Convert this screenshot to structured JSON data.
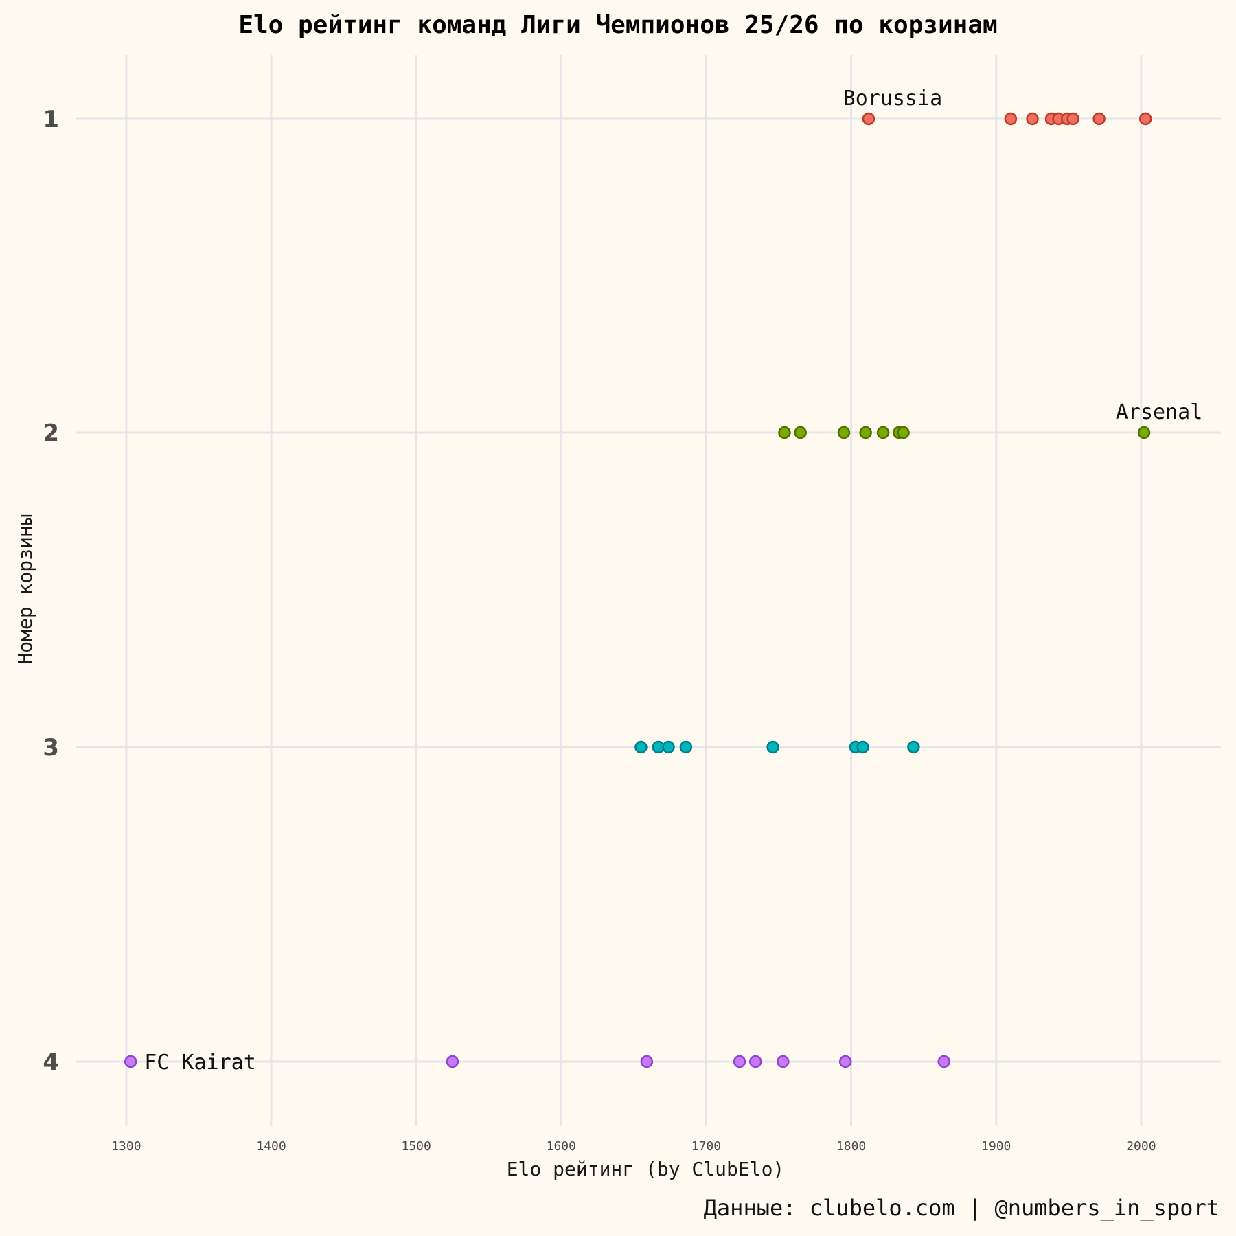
{
  "chart_data": {
    "type": "scatter",
    "title": "Elo рейтинг команд Лиги Чемпионов 25/26 по корзинам",
    "xlabel": "Elo рейтинг (by ClubElo)",
    "ylabel": "Номер корзины",
    "caption": "Данные: clubelo.com | @numbers_in_sport",
    "xlim": [
      1265,
      2055
    ],
    "x_ticks": [
      1300,
      1400,
      1500,
      1600,
      1700,
      1800,
      1900,
      2000
    ],
    "y_categories": [
      "1",
      "2",
      "3",
      "4"
    ],
    "grid": true,
    "legend": "none",
    "series": [
      {
        "pot": "1",
        "color": "#f0705f",
        "stroke": "#c0392b",
        "x": [
          1812,
          1910,
          1925,
          1938,
          1943,
          1949,
          1953,
          1971,
          2003
        ]
      },
      {
        "pot": "2",
        "color": "#7aaa00",
        "stroke": "#4f7000",
        "x": [
          1754,
          1765,
          1795,
          1810,
          1822,
          1833,
          1836,
          2002
        ]
      },
      {
        "pot": "3",
        "color": "#00b4bc",
        "stroke": "#00808a",
        "x": [
          1655,
          1667,
          1674,
          1686,
          1746,
          1803,
          1808,
          1843
        ]
      },
      {
        "pot": "4",
        "color": "#c47cf5",
        "stroke": "#9440d0",
        "x": [
          1303,
          1525,
          1659,
          1723,
          1734,
          1753,
          1796,
          1864
        ]
      }
    ],
    "annotations": [
      {
        "text": "Borussia",
        "pot": "1",
        "x": 1812,
        "anchor": "middle",
        "position": "above"
      },
      {
        "text": "Arsenal",
        "pot": "2",
        "x": 2002,
        "anchor": "end-ish",
        "position": "above"
      },
      {
        "text": "FC Kairat",
        "pot": "4",
        "x": 1303,
        "anchor": "start",
        "position": "right"
      }
    ]
  }
}
